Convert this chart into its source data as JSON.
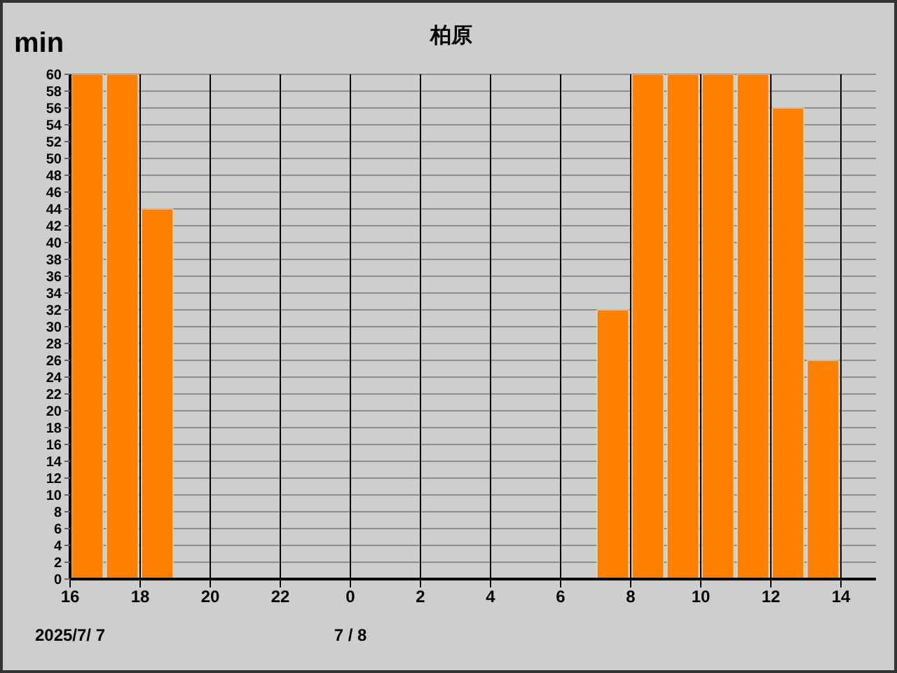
{
  "chart_data": {
    "type": "bar",
    "title": "柏原",
    "ylabel": "min",
    "x": [
      "2025-07-07T16:30",
      "2025-07-07T17:30",
      "2025-07-07T18:30",
      "2025-07-07T19:30",
      "2025-07-07T20:30",
      "2025-07-07T21:30",
      "2025-07-07T22:30",
      "2025-07-07T23:30",
      "2025-07-08T00:30",
      "2025-07-08T01:30",
      "2025-07-08T02:30",
      "2025-07-08T03:30",
      "2025-07-08T04:30",
      "2025-07-08T05:30",
      "2025-07-08T06:30",
      "2025-07-08T07:30",
      "2025-07-08T08:30",
      "2025-07-08T09:30",
      "2025-07-08T10:30",
      "2025-07-08T11:30",
      "2025-07-08T12:30",
      "2025-07-08T13:30"
    ],
    "values": [
      60,
      60,
      44,
      0,
      0,
      0,
      0,
      0,
      0,
      0,
      0,
      0,
      0,
      0,
      0,
      32,
      60,
      60,
      60,
      60,
      56,
      26
    ],
    "color": "#ff8000",
    "xlim": [
      "2025-07-07T16:00",
      "2025-07-08T15:00"
    ],
    "xticks": [
      {
        "value": "2025-07-07T16:00",
        "label": "16"
      },
      {
        "value": "2025-07-07T18:00",
        "label": "18"
      },
      {
        "value": "2025-07-07T20:00",
        "label": "20"
      },
      {
        "value": "2025-07-07T22:00",
        "label": "22"
      },
      {
        "value": "2025-07-08T00:00",
        "label": "0"
      },
      {
        "value": "2025-07-08T02:00",
        "label": "2"
      },
      {
        "value": "2025-07-08T04:00",
        "label": "4"
      },
      {
        "value": "2025-07-08T06:00",
        "label": "6"
      },
      {
        "value": "2025-07-08T08:00",
        "label": "8"
      },
      {
        "value": "2025-07-08T10:00",
        "label": "10"
      },
      {
        "value": "2025-07-08T12:00",
        "label": "12"
      },
      {
        "value": "2025-07-08T14:00",
        "label": "14"
      }
    ],
    "ylim": [
      0,
      60
    ],
    "yticks": [
      0,
      2,
      4,
      6,
      8,
      10,
      12,
      14,
      16,
      18,
      20,
      22,
      24,
      26,
      28,
      30,
      32,
      34,
      36,
      38,
      40,
      42,
      44,
      46,
      48,
      50,
      52,
      54,
      56,
      58,
      60
    ],
    "grid": true,
    "annotations": [
      "2025/7/ 7",
      "7 / 8"
    ]
  }
}
